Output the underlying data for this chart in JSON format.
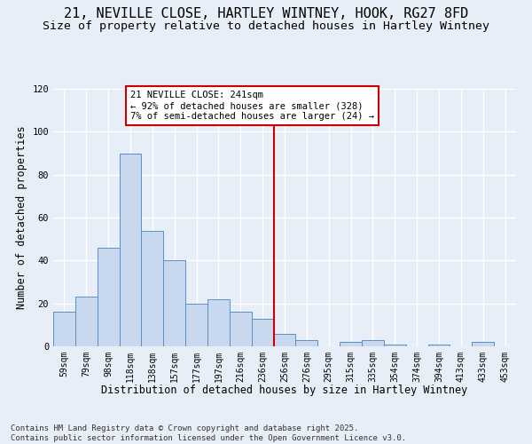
{
  "title_line1": "21, NEVILLE CLOSE, HARTLEY WINTNEY, HOOK, RG27 8FD",
  "title_line2": "Size of property relative to detached houses in Hartley Wintney",
  "xlabel": "Distribution of detached houses by size in Hartley Wintney",
  "ylabel": "Number of detached properties",
  "bar_labels": [
    "59sqm",
    "79sqm",
    "98sqm",
    "118sqm",
    "138sqm",
    "157sqm",
    "177sqm",
    "197sqm",
    "216sqm",
    "236sqm",
    "256sqm",
    "276sqm",
    "295sqm",
    "315sqm",
    "335sqm",
    "354sqm",
    "374sqm",
    "394sqm",
    "413sqm",
    "433sqm",
    "453sqm"
  ],
  "bar_values": [
    16,
    23,
    46,
    90,
    54,
    40,
    20,
    22,
    16,
    13,
    6,
    3,
    0,
    2,
    3,
    1,
    0,
    1,
    0,
    2,
    0
  ],
  "bar_color": "#c8d8ee",
  "bar_edge_color": "#5b8fc4",
  "bg_color": "#e8eef8",
  "grid_color": "#ffffff",
  "vline_x": 9.5,
  "vline_color": "#cc0000",
  "annotation_text": "21 NEVILLE CLOSE: 241sqm\n← 92% of detached houses are smaller (328)\n7% of semi-detached houses are larger (24) →",
  "annotation_box_color": "#ffffff",
  "annotation_box_edge": "#cc0000",
  "ylim": [
    0,
    120
  ],
  "yticks": [
    0,
    20,
    40,
    60,
    80,
    100,
    120
  ],
  "footer_line1": "Contains HM Land Registry data © Crown copyright and database right 2025.",
  "footer_line2": "Contains public sector information licensed under the Open Government Licence v3.0.",
  "title_fontsize": 11,
  "subtitle_fontsize": 9.5,
  "axis_label_fontsize": 8.5,
  "tick_fontsize": 7,
  "annotation_fontsize": 7.5,
  "footer_fontsize": 6.5
}
